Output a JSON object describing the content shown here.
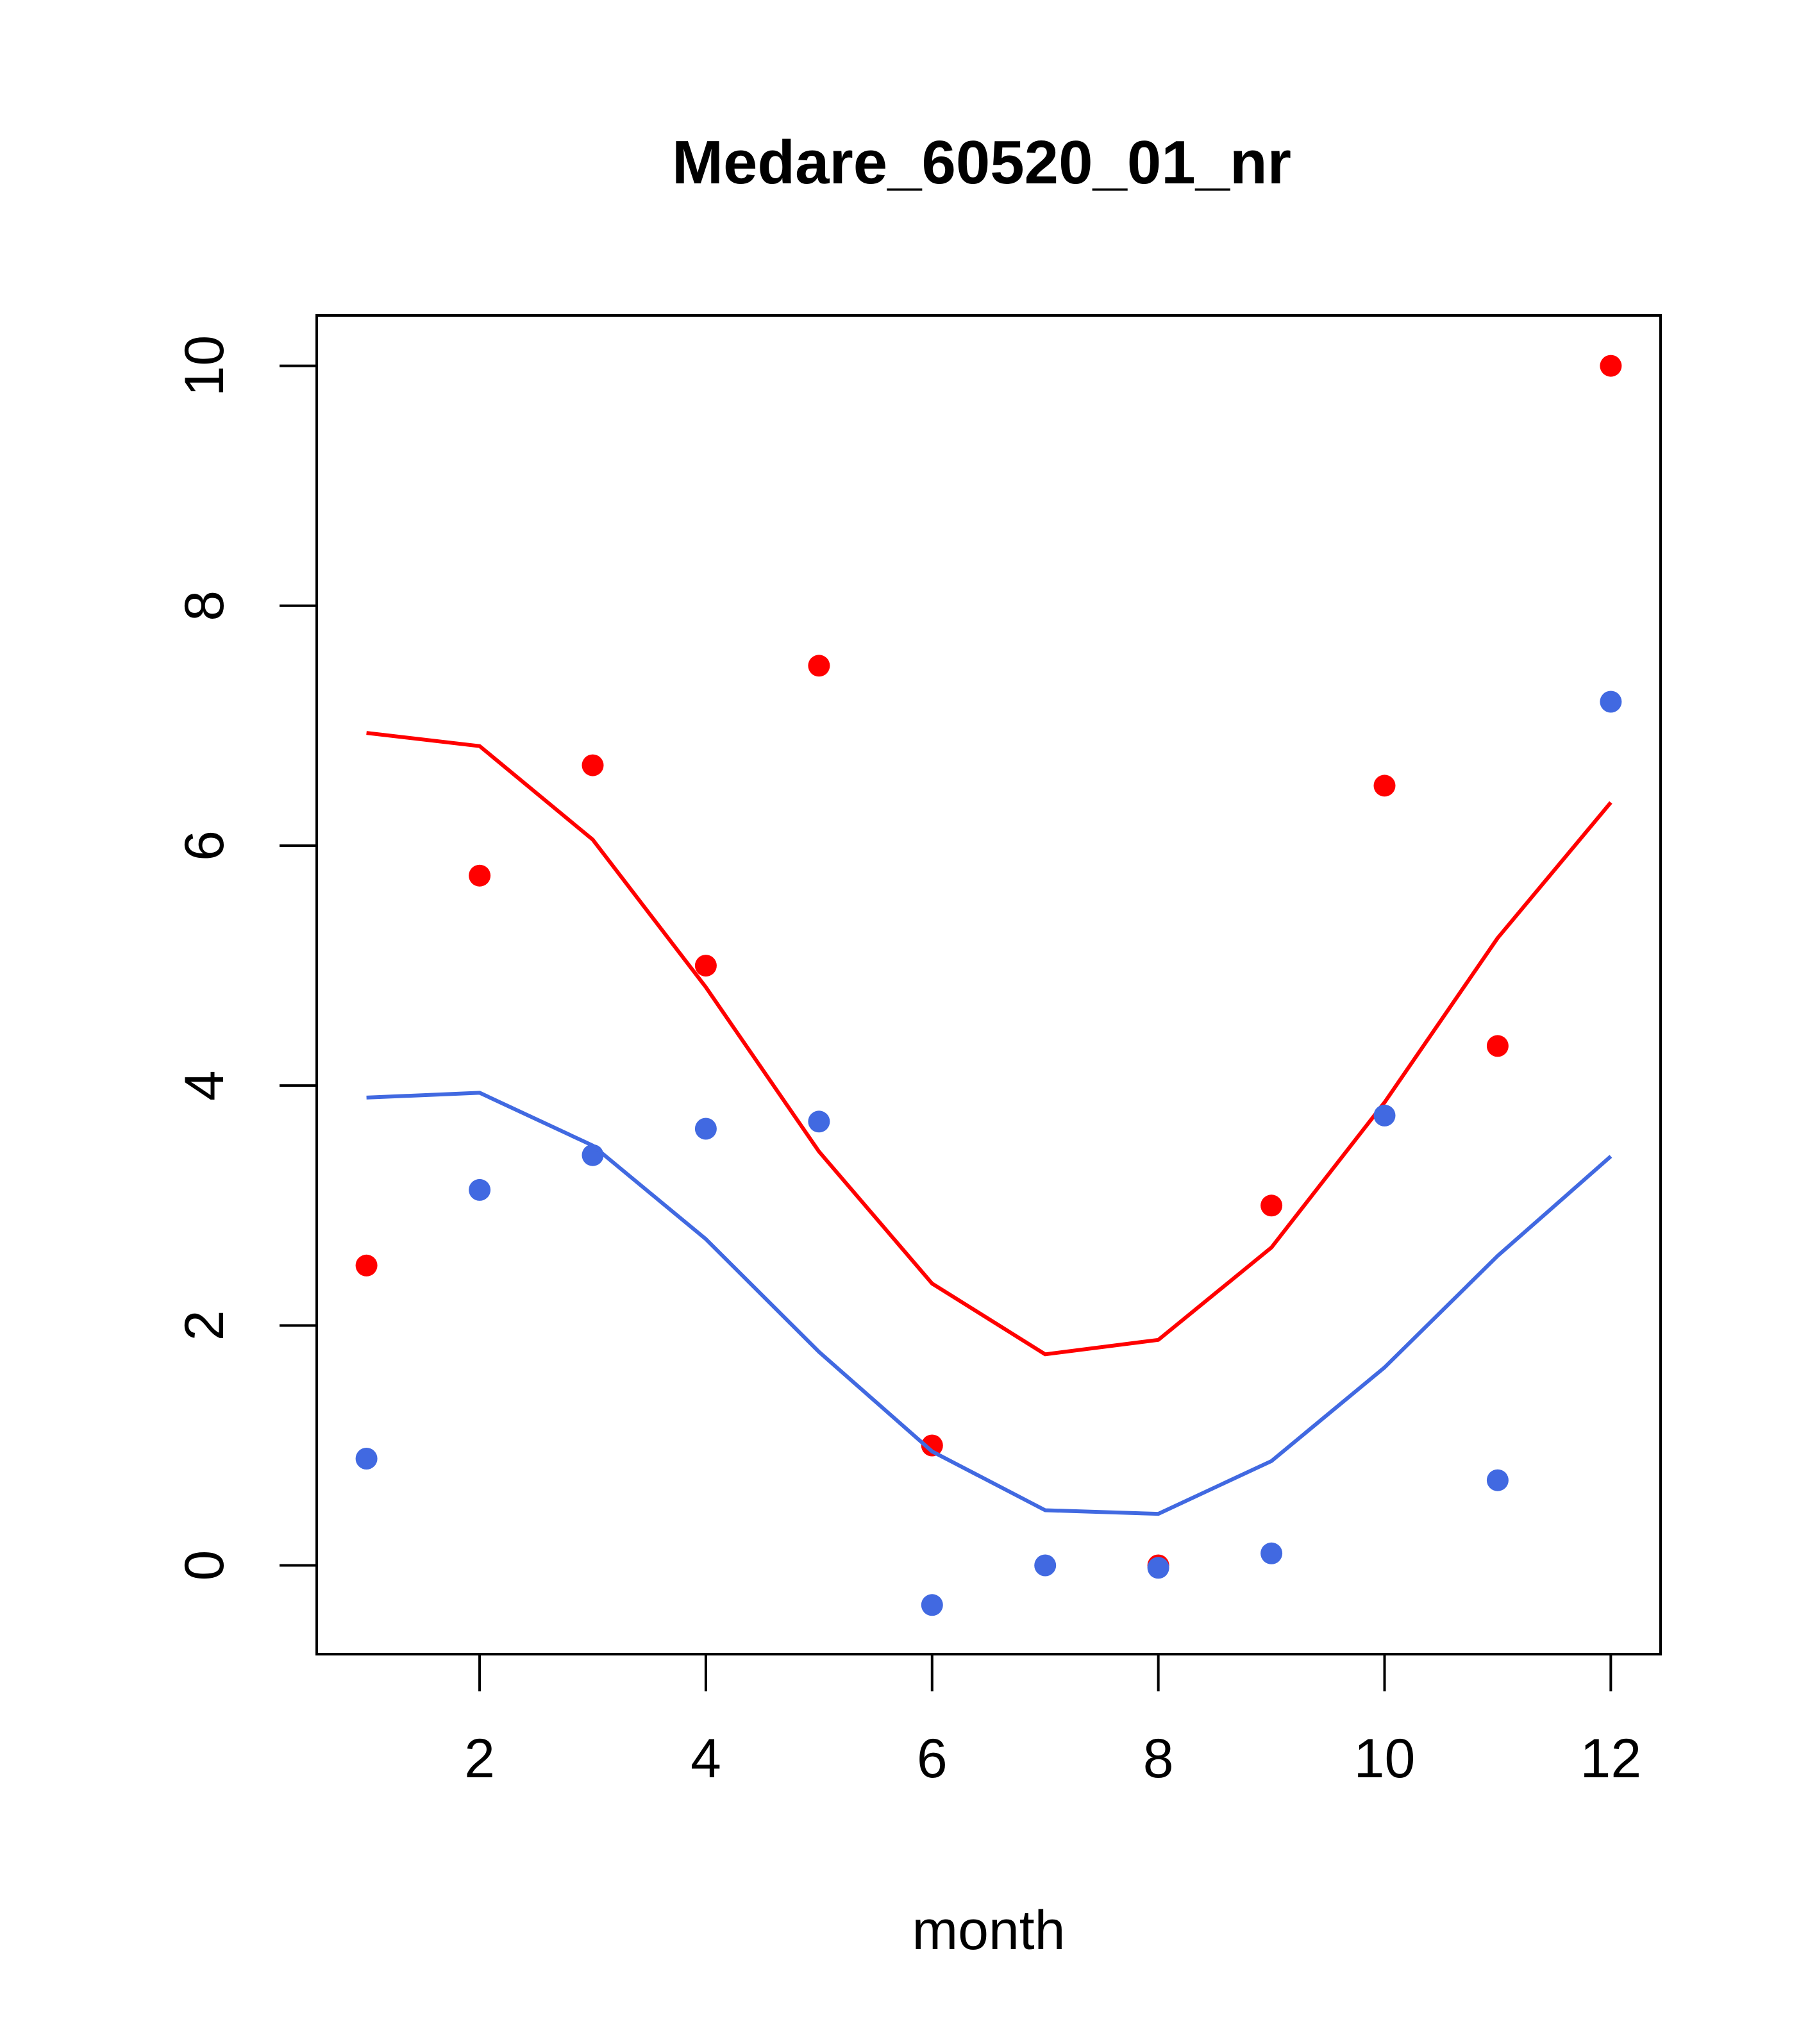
{
  "chart_data": {
    "type": "scatter",
    "title": "Medare_60520_01_nr",
    "xlabel": "month",
    "ylabel": "",
    "xlim": [
      0.56,
      12.44
    ],
    "ylim": [
      -0.74,
      10.42
    ],
    "xticks": [
      2,
      4,
      6,
      8,
      10,
      12
    ],
    "yticks": [
      0,
      2,
      4,
      6,
      8,
      10
    ],
    "grid": false,
    "series": [
      {
        "name": "red points",
        "kind": "points",
        "color": "#ff0000",
        "x": [
          1,
          2,
          3,
          4,
          5,
          6,
          8,
          9,
          10,
          11,
          12
        ],
        "y": [
          2.5,
          5.75,
          6.67,
          5.0,
          7.5,
          1.0,
          0.0,
          3.0,
          6.5,
          4.33,
          10.0
        ]
      },
      {
        "name": "red line",
        "kind": "line",
        "color": "#ff0000",
        "x": [
          1,
          2,
          3,
          4,
          5,
          6,
          7,
          8,
          9,
          10,
          11,
          12
        ],
        "y": [
          6.94,
          6.83,
          6.05,
          4.82,
          3.45,
          2.35,
          1.76,
          1.88,
          2.65,
          3.86,
          5.23,
          6.36
        ]
      },
      {
        "name": "blue points",
        "kind": "points",
        "color": "#4169e1",
        "x": [
          1,
          2,
          3,
          4,
          5,
          6,
          7,
          8,
          9,
          10,
          11,
          12
        ],
        "y": [
          0.89,
          3.13,
          3.42,
          3.64,
          3.7,
          -0.33,
          0.0,
          -0.02,
          0.1,
          3.75,
          0.71,
          7.2
        ]
      },
      {
        "name": "blue line",
        "kind": "line",
        "color": "#4169e1",
        "x": [
          1,
          2,
          3,
          4,
          5,
          6,
          7,
          8,
          9,
          10,
          11,
          12
        ],
        "y": [
          3.9,
          3.94,
          3.5,
          2.72,
          1.78,
          0.95,
          0.46,
          0.43,
          0.87,
          1.65,
          2.58,
          3.41
        ]
      }
    ]
  }
}
